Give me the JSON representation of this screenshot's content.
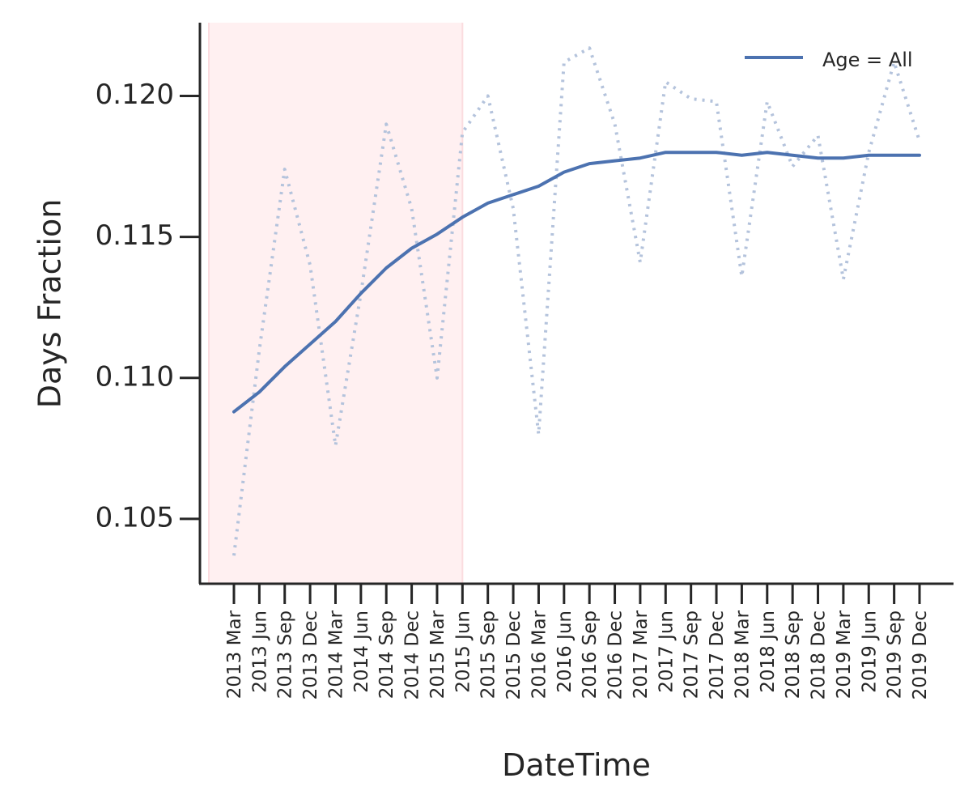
{
  "chart_data": {
    "type": "line",
    "title": "",
    "xlabel": "DateTime",
    "ylabel": "Days Fraction",
    "categories": [
      "2013 Mar",
      "2013 Jun",
      "2013 Sep",
      "2013 Dec",
      "2014 Mar",
      "2014 Jun",
      "2014 Sep",
      "2014 Dec",
      "2015 Mar",
      "2015 Jun",
      "2015 Sep",
      "2015 Dec",
      "2016 Mar",
      "2016 Jun",
      "2016 Sep",
      "2016 Dec",
      "2017 Mar",
      "2017 Jun",
      "2017 Sep",
      "2017 Dec",
      "2018 Mar",
      "2018 Jun",
      "2018 Sep",
      "2018 Dec",
      "2019 Mar",
      "2019 Jun",
      "2019 Sep",
      "2019 Dec"
    ],
    "yticks": [
      "0.105",
      "0.110",
      "0.115",
      "0.120"
    ],
    "ylim": [
      0.1027,
      0.1226
    ],
    "grid": false,
    "legend_position": "top-right",
    "shaded_region": {
      "from": "2013 Mar",
      "to": "2015 Jun",
      "color": "#fff0f1"
    },
    "series": [
      {
        "name": "Age = All",
        "style": "solid",
        "color": "#4c72b0",
        "values": [
          0.1088,
          0.1095,
          0.1104,
          0.1112,
          0.112,
          0.113,
          0.1139,
          0.1146,
          0.1151,
          0.1157,
          0.1162,
          0.1165,
          0.1168,
          0.1173,
          0.1176,
          0.1177,
          0.1178,
          0.118,
          0.118,
          0.118,
          0.1179,
          0.118,
          0.1179,
          0.1178,
          0.1178,
          0.1179,
          0.1179,
          0.1179
        ]
      },
      {
        "name": "",
        "style": "dotted",
        "color": "#b4c3dc",
        "values": [
          0.1037,
          0.111,
          0.1174,
          0.114,
          0.1076,
          0.113,
          0.119,
          0.116,
          0.11,
          0.1187,
          0.12,
          0.116,
          0.108,
          0.1212,
          0.1217,
          0.119,
          0.1141,
          0.1205,
          0.1199,
          0.1198,
          0.1136,
          0.1198,
          0.1175,
          0.1186,
          0.1135,
          0.118,
          0.1212,
          0.1184
        ]
      }
    ]
  }
}
